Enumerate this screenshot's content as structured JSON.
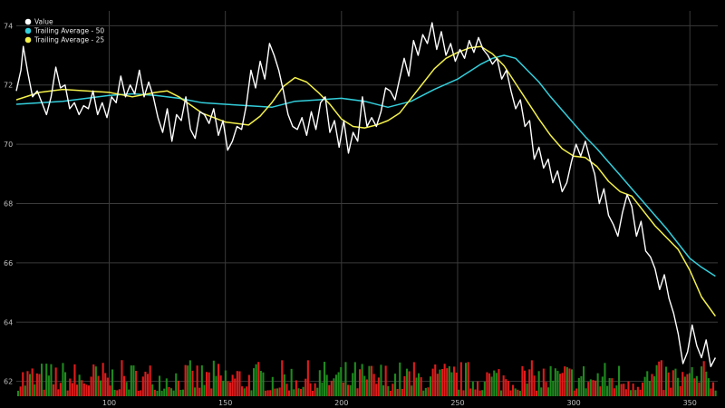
{
  "chart_data": {
    "type": "line",
    "title": "",
    "xlabel": "",
    "ylabel": "",
    "xlim": [
      60,
      362
    ],
    "ylim": [
      61.5,
      74.5
    ],
    "x_ticks": [
      100,
      150,
      200,
      250,
      300,
      350
    ],
    "y_ticks": [
      62,
      64,
      66,
      68,
      70,
      72,
      74
    ],
    "grid": true,
    "legend_position": "top-left",
    "background": "#000000",
    "series": [
      {
        "name": "Value",
        "color": "#ffffff",
        "points": [
          [
            60,
            71.8
          ],
          [
            62,
            72.5
          ],
          [
            63,
            73.3
          ],
          [
            65,
            72.4
          ],
          [
            67,
            71.6
          ],
          [
            69,
            71.8
          ],
          [
            71,
            71.4
          ],
          [
            73,
            71.0
          ],
          [
            75,
            71.6
          ],
          [
            77,
            72.6
          ],
          [
            79,
            71.9
          ],
          [
            81,
            72.0
          ],
          [
            83,
            71.2
          ],
          [
            85,
            71.4
          ],
          [
            87,
            71.0
          ],
          [
            89,
            71.3
          ],
          [
            91,
            71.2
          ],
          [
            93,
            71.8
          ],
          [
            95,
            71.0
          ],
          [
            97,
            71.4
          ],
          [
            99,
            70.9
          ],
          [
            101,
            71.6
          ],
          [
            103,
            71.4
          ],
          [
            105,
            72.3
          ],
          [
            107,
            71.6
          ],
          [
            109,
            72.0
          ],
          [
            111,
            71.7
          ],
          [
            113,
            72.5
          ],
          [
            115,
            71.6
          ],
          [
            117,
            72.1
          ],
          [
            119,
            71.6
          ],
          [
            121,
            70.9
          ],
          [
            123,
            70.4
          ],
          [
            125,
            71.2
          ],
          [
            127,
            70.1
          ],
          [
            129,
            71.0
          ],
          [
            131,
            70.8
          ],
          [
            133,
            71.6
          ],
          [
            135,
            70.5
          ],
          [
            137,
            70.2
          ],
          [
            139,
            71.1
          ],
          [
            141,
            71.0
          ],
          [
            143,
            70.7
          ],
          [
            145,
            71.2
          ],
          [
            147,
            70.3
          ],
          [
            149,
            70.8
          ],
          [
            151,
            69.8
          ],
          [
            153,
            70.1
          ],
          [
            155,
            70.6
          ],
          [
            157,
            70.5
          ],
          [
            159,
            71.3
          ],
          [
            161,
            72.5
          ],
          [
            163,
            71.9
          ],
          [
            165,
            72.8
          ],
          [
            167,
            72.2
          ],
          [
            169,
            73.4
          ],
          [
            171,
            73.0
          ],
          [
            173,
            72.5
          ],
          [
            175,
            71.8
          ],
          [
            177,
            71.0
          ],
          [
            179,
            70.6
          ],
          [
            181,
            70.5
          ],
          [
            183,
            70.9
          ],
          [
            185,
            70.3
          ],
          [
            187,
            71.1
          ],
          [
            189,
            70.5
          ],
          [
            191,
            71.4
          ],
          [
            193,
            71.6
          ],
          [
            195,
            70.4
          ],
          [
            197,
            70.8
          ],
          [
            199,
            69.9
          ],
          [
            201,
            70.8
          ],
          [
            203,
            69.7
          ],
          [
            205,
            70.4
          ],
          [
            207,
            70.1
          ],
          [
            209,
            71.6
          ],
          [
            211,
            70.6
          ],
          [
            213,
            70.9
          ],
          [
            215,
            70.6
          ],
          [
            217,
            71.1
          ],
          [
            219,
            71.9
          ],
          [
            221,
            71.8
          ],
          [
            223,
            71.5
          ],
          [
            225,
            72.2
          ],
          [
            227,
            72.9
          ],
          [
            229,
            72.3
          ],
          [
            231,
            73.5
          ],
          [
            233,
            73.0
          ],
          [
            235,
            73.7
          ],
          [
            237,
            73.4
          ],
          [
            239,
            74.1
          ],
          [
            241,
            73.2
          ],
          [
            243,
            73.8
          ],
          [
            245,
            73.0
          ],
          [
            247,
            73.4
          ],
          [
            249,
            72.8
          ],
          [
            251,
            73.2
          ],
          [
            253,
            72.9
          ],
          [
            255,
            73.5
          ],
          [
            257,
            73.1
          ],
          [
            259,
            73.6
          ],
          [
            261,
            73.2
          ],
          [
            263,
            73.0
          ],
          [
            265,
            72.7
          ],
          [
            267,
            72.9
          ],
          [
            269,
            72.2
          ],
          [
            271,
            72.5
          ],
          [
            273,
            71.8
          ],
          [
            275,
            71.2
          ],
          [
            277,
            71.5
          ],
          [
            279,
            70.6
          ],
          [
            281,
            70.8
          ],
          [
            283,
            69.5
          ],
          [
            285,
            69.9
          ],
          [
            287,
            69.2
          ],
          [
            289,
            69.5
          ],
          [
            291,
            68.7
          ],
          [
            293,
            69.1
          ],
          [
            295,
            68.4
          ],
          [
            297,
            68.7
          ],
          [
            299,
            69.4
          ],
          [
            301,
            70.0
          ],
          [
            303,
            69.6
          ],
          [
            305,
            70.1
          ],
          [
            307,
            69.5
          ],
          [
            309,
            69.0
          ],
          [
            311,
            68.0
          ],
          [
            313,
            68.5
          ],
          [
            315,
            67.6
          ],
          [
            317,
            67.3
          ],
          [
            319,
            66.9
          ],
          [
            321,
            67.7
          ],
          [
            323,
            68.3
          ],
          [
            325,
            67.9
          ],
          [
            327,
            66.9
          ],
          [
            329,
            67.4
          ],
          [
            331,
            66.4
          ],
          [
            333,
            66.2
          ],
          [
            335,
            65.8
          ],
          [
            337,
            65.1
          ],
          [
            339,
            65.6
          ],
          [
            341,
            64.8
          ],
          [
            343,
            64.3
          ],
          [
            345,
            63.6
          ],
          [
            347,
            62.6
          ],
          [
            349,
            63.0
          ],
          [
            351,
            63.9
          ],
          [
            353,
            63.2
          ],
          [
            355,
            62.8
          ],
          [
            357,
            63.4
          ],
          [
            359,
            62.5
          ],
          [
            361,
            62.8
          ]
        ]
      },
      {
        "name": "Trailing Average - 50",
        "color": "#33cfdc",
        "points": [
          [
            60,
            71.35
          ],
          [
            80,
            71.45
          ],
          [
            100,
            71.65
          ],
          [
            110,
            71.7
          ],
          [
            120,
            71.65
          ],
          [
            130,
            71.55
          ],
          [
            140,
            71.4
          ],
          [
            150,
            71.35
          ],
          [
            160,
            71.3
          ],
          [
            170,
            71.25
          ],
          [
            180,
            71.45
          ],
          [
            190,
            71.5
          ],
          [
            200,
            71.55
          ],
          [
            210,
            71.45
          ],
          [
            220,
            71.25
          ],
          [
            230,
            71.45
          ],
          [
            240,
            71.85
          ],
          [
            250,
            72.2
          ],
          [
            255,
            72.45
          ],
          [
            260,
            72.7
          ],
          [
            265,
            72.9
          ],
          [
            270,
            73.0
          ],
          [
            275,
            72.9
          ],
          [
            280,
            72.5
          ],
          [
            285,
            72.1
          ],
          [
            290,
            71.6
          ],
          [
            295,
            71.15
          ],
          [
            300,
            70.7
          ],
          [
            305,
            70.25
          ],
          [
            310,
            69.85
          ],
          [
            315,
            69.4
          ],
          [
            320,
            68.95
          ],
          [
            325,
            68.5
          ],
          [
            330,
            68.05
          ],
          [
            335,
            67.6
          ],
          [
            340,
            67.15
          ],
          [
            345,
            66.65
          ],
          [
            350,
            66.15
          ],
          [
            355,
            65.85
          ],
          [
            361,
            65.55
          ]
        ]
      },
      {
        "name": "Trailing Average - 25",
        "color": "#f3f04a",
        "points": [
          [
            60,
            71.5
          ],
          [
            70,
            71.75
          ],
          [
            80,
            71.85
          ],
          [
            90,
            71.8
          ],
          [
            100,
            71.75
          ],
          [
            110,
            71.6
          ],
          [
            120,
            71.75
          ],
          [
            125,
            71.8
          ],
          [
            130,
            71.6
          ],
          [
            140,
            71.05
          ],
          [
            150,
            70.75
          ],
          [
            160,
            70.65
          ],
          [
            165,
            70.95
          ],
          [
            170,
            71.4
          ],
          [
            175,
            71.95
          ],
          [
            180,
            72.25
          ],
          [
            185,
            72.1
          ],
          [
            190,
            71.75
          ],
          [
            195,
            71.35
          ],
          [
            200,
            70.85
          ],
          [
            205,
            70.6
          ],
          [
            210,
            70.55
          ],
          [
            215,
            70.65
          ],
          [
            220,
            70.8
          ],
          [
            225,
            71.05
          ],
          [
            230,
            71.55
          ],
          [
            235,
            72.05
          ],
          [
            240,
            72.55
          ],
          [
            245,
            72.9
          ],
          [
            250,
            73.1
          ],
          [
            255,
            73.25
          ],
          [
            260,
            73.3
          ],
          [
            265,
            73.05
          ],
          [
            270,
            72.65
          ],
          [
            275,
            72.05
          ],
          [
            280,
            71.45
          ],
          [
            285,
            70.85
          ],
          [
            290,
            70.3
          ],
          [
            295,
            69.85
          ],
          [
            300,
            69.6
          ],
          [
            305,
            69.55
          ],
          [
            310,
            69.25
          ],
          [
            315,
            68.75
          ],
          [
            320,
            68.4
          ],
          [
            325,
            68.25
          ],
          [
            330,
            67.75
          ],
          [
            335,
            67.25
          ],
          [
            340,
            66.85
          ],
          [
            345,
            66.45
          ],
          [
            350,
            65.75
          ],
          [
            355,
            64.85
          ],
          [
            361,
            64.2
          ]
        ]
      }
    ]
  },
  "volume_bars": {
    "colors": {
      "up": "#1e8a1e",
      "down": "#e01b1b"
    }
  }
}
